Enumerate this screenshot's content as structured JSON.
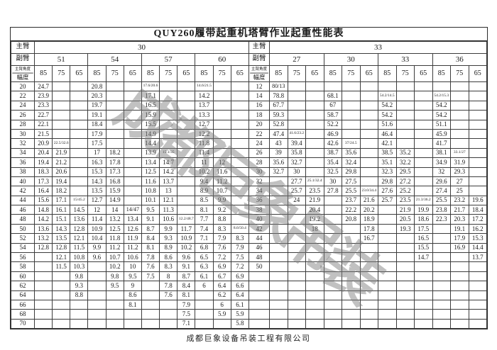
{
  "title": "QUY260履带起重机塔臂作业起重性能表",
  "footer": "成都巨象设备吊装工程有限公司",
  "watermark": "成都巨象吊装",
  "labels": {
    "main_boom": "主臂",
    "jib": "副臂",
    "boom_angle": "主臂角度",
    "radius": "幅度"
  },
  "left_table": {
    "main_boom_value": "30",
    "jibs": [
      "51",
      "54",
      "57",
      "60"
    ],
    "angles": [
      "85",
      "75",
      "65"
    ],
    "rows": [
      {
        "r": "20",
        "v": [
          "24.7",
          "",
          "",
          "20.8",
          "",
          "",
          "17.6/20.6",
          "",
          "",
          "14.6/21.5",
          "",
          ""
        ]
      },
      {
        "r": "22",
        "v": [
          "23.9",
          "",
          "",
          "20.3",
          "",
          "",
          "17.1",
          "",
          "",
          "14.2",
          "",
          ""
        ]
      },
      {
        "r": "24",
        "v": [
          "23.3",
          "",
          "",
          "19.7",
          "",
          "",
          "16.5",
          "",
          "",
          "13.7",
          "",
          ""
        ]
      },
      {
        "r": "26",
        "v": [
          "22.7",
          "",
          "",
          "19.1",
          "",
          "",
          "15.9",
          "",
          "",
          "13.3",
          "",
          ""
        ]
      },
      {
        "r": "28",
        "v": [
          "22.1",
          "",
          "",
          "18.4",
          "",
          "",
          "15.5",
          "",
          "",
          "12.7",
          "",
          ""
        ]
      },
      {
        "r": "30",
        "v": [
          "21.5",
          "",
          "",
          "17.9",
          "",
          "",
          "14.9",
          "",
          "",
          "12.2",
          "",
          ""
        ]
      },
      {
        "r": "32",
        "v": [
          "20.9",
          "22.5/32.6",
          "",
          "17.5",
          "",
          "",
          "14.4",
          "",
          "",
          "11.8",
          "",
          ""
        ]
      },
      {
        "r": "34",
        "v": [
          "20.4",
          "21.9",
          "",
          "17",
          "18.2",
          "",
          "13.9",
          "15.1/35",
          "",
          "11.4",
          "",
          ""
        ]
      },
      {
        "r": "36",
        "v": [
          "19.4",
          "21.2",
          "",
          "16.3",
          "17.8",
          "",
          "13.4",
          "14.7",
          "",
          "11",
          "12",
          ""
        ]
      },
      {
        "r": "38",
        "v": [
          "18.3",
          "20.6",
          "",
          "15.3",
          "17.3",
          "",
          "12.5",
          "14.2",
          "",
          "10.2",
          "11.6",
          ""
        ]
      },
      {
        "r": "40",
        "v": [
          "17.3",
          "19.4",
          "",
          "14.3",
          "16.8",
          "",
          "11.6",
          "13.7",
          "",
          "9.4",
          "11.2",
          ""
        ]
      },
      {
        "r": "42",
        "v": [
          "16.4",
          "18.2",
          "",
          "13.5",
          "15.9",
          "",
          "10.8",
          "13",
          "",
          "8.9",
          "10.7",
          ""
        ]
      },
      {
        "r": "44",
        "v": [
          "15.6",
          "17.1",
          "15/45.2",
          "12.7",
          "14.9",
          "",
          "10.1",
          "12.1",
          "",
          "8.5",
          "9.9",
          ""
        ]
      },
      {
        "r": "46",
        "v": [
          "14.8",
          "16.1",
          "14.5",
          "12",
          "14",
          "14/47",
          "9.5",
          "11.3",
          "",
          "8.1",
          "9.2",
          ""
        ]
      },
      {
        "r": "48",
        "v": [
          "14.2",
          "15.1",
          "13.6",
          "11.4",
          "13.2",
          "13.4",
          "9.1",
          "10.6",
          "12.2/48.7",
          "7.7",
          "8.8",
          ""
        ]
      },
      {
        "r": "50",
        "v": [
          "13.6",
          "14.3",
          "12.8",
          "10.9",
          "12.5",
          "12.6",
          "8.7",
          "9.9",
          "11.7",
          "7.4",
          "8.3",
          "8.6/50.4"
        ]
      },
      {
        "r": "52",
        "v": [
          "13.2",
          "13.5",
          "12.1",
          "10.4",
          "11.8",
          "11.9",
          "8.4",
          "9.3",
          "10.9",
          "7.1",
          "7.9",
          "8.3"
        ]
      },
      {
        "r": "54",
        "v": [
          "12.8",
          "12.8",
          "11.5",
          "9.9",
          "11.2",
          "11.2",
          "8.1",
          "8.9",
          "10.2",
          "6.8",
          "7.6",
          "7.9"
        ]
      },
      {
        "r": "56",
        "v": [
          "",
          "12.1",
          "10.8",
          "9.6",
          "10.7",
          "10.6",
          "7.8",
          "8.6",
          "9.6",
          "6.5",
          "7.2",
          "7.5"
        ]
      },
      {
        "r": "58",
        "v": [
          "",
          "11.5",
          "10.3",
          "",
          "10.2",
          "10",
          "7.6",
          "8.3",
          "9.1",
          "6.3",
          "6.9",
          "7.2"
        ]
      },
      {
        "r": "60",
        "v": [
          "",
          "",
          "9.8",
          "",
          "9.8",
          "9.5",
          "7.5",
          "8",
          "8.7",
          "6.1",
          "6.7",
          "6.9"
        ]
      },
      {
        "r": "62",
        "v": [
          "",
          "",
          "9.3",
          "",
          "9.5",
          "9",
          "",
          "7.8",
          "8.4",
          "6",
          "6.4",
          "6.6"
        ]
      },
      {
        "r": "64",
        "v": [
          "",
          "",
          "8.8",
          "",
          "",
          "8.6",
          "",
          "7.6",
          "8.1",
          "",
          "6.2",
          "6.4"
        ]
      },
      {
        "r": "66",
        "v": [
          "",
          "",
          "",
          "",
          "",
          "8.1",
          "",
          "",
          "7.9",
          "",
          "6",
          "6.1"
        ]
      },
      {
        "r": "68",
        "v": [
          "",
          "",
          "",
          "",
          "",
          "",
          "",
          "",
          "7.5",
          "",
          "5.9",
          "5.9"
        ]
      },
      {
        "r": "70",
        "v": [
          "",
          "",
          "",
          "",
          "",
          "",
          "",
          "",
          "7.1",
          "",
          "",
          "5.8"
        ]
      }
    ]
  },
  "right_table": {
    "main_boom_value": "33",
    "jibs": [
      "27",
      "30",
      "33",
      "36"
    ],
    "angles": [
      "85",
      "75",
      "65"
    ],
    "rows": [
      {
        "r": "12",
        "v": [
          "80/13",
          "",
          "",
          "",
          "",
          "",
          "",
          "",
          "",
          "",
          "",
          ""
        ]
      },
      {
        "r": "14",
        "v": [
          "78.8",
          "",
          "",
          "68.1",
          "",
          "",
          "54.2/14.5",
          "",
          "",
          "54.2/15.3",
          "",
          ""
        ]
      },
      {
        "r": "16",
        "v": [
          "67.7",
          "",
          "",
          "67",
          "",
          "",
          "54.2",
          "",
          "",
          "54.2",
          "",
          ""
        ]
      },
      {
        "r": "18",
        "v": [
          "59.3",
          "",
          "",
          "58.7",
          "",
          "",
          "54.2",
          "",
          "",
          "54.2",
          "",
          ""
        ]
      },
      {
        "r": "20",
        "v": [
          "52.8",
          "",
          "",
          "52.2",
          "",
          "",
          "51.6",
          "",
          "",
          "51.1",
          "",
          ""
        ]
      },
      {
        "r": "22",
        "v": [
          "47.4",
          "41.6/23.2",
          "",
          "46.9",
          "",
          "",
          "46.4",
          "",
          "",
          "45.9",
          "",
          ""
        ]
      },
      {
        "r": "24",
        "v": [
          "43",
          "39.4",
          "",
          "42.6",
          "37/24.5",
          "",
          "42.1",
          "",
          "",
          "41.7",
          "",
          ""
        ]
      },
      {
        "r": "26",
        "v": [
          "39",
          "35.8",
          "",
          "38.7",
          "35.6",
          "",
          "38.5",
          "35.2",
          "",
          "38.1",
          "33.1/27",
          ""
        ]
      },
      {
        "r": "28",
        "v": [
          "35.6",
          "32.7",
          "",
          "35.4",
          "32.4",
          "",
          "35.1",
          "32.2",
          "",
          "34.9",
          "31.9",
          ""
        ]
      },
      {
        "r": "30",
        "v": [
          "32.7",
          "30",
          "",
          "32.5",
          "29.8",
          "",
          "32.3",
          "29.5",
          "",
          "32",
          "29.3",
          ""
        ]
      },
      {
        "r": "32",
        "v": [
          "",
          "27.7",
          "25.1/32.4",
          "30",
          "27.5",
          "",
          "29.8",
          "27.2",
          "",
          "29.6",
          "27",
          ""
        ]
      },
      {
        "r": "34",
        "v": [
          "",
          "25.7",
          "23.5",
          "27.8",
          "25.5",
          "23.0/34.4",
          "27.6",
          "25.2",
          "",
          "27.4",
          "25",
          ""
        ]
      },
      {
        "r": "36",
        "v": [
          "",
          "24",
          "21.9",
          "",
          "23.7",
          "21.6",
          "25.7",
          "23.5",
          "21.3/36.2",
          "25.5",
          "23.2",
          "19.6"
        ]
      },
      {
        "r": "38",
        "v": [
          "",
          "",
          "20.4",
          "",
          "22.2",
          "20.2",
          "",
          "21.9",
          "19.9",
          "23.8",
          "21.7",
          "18.4"
        ]
      },
      {
        "r": "40",
        "v": [
          "",
          "",
          "19.2",
          "",
          "20.8",
          "18.9",
          "",
          "20.5",
          "18.6",
          "22.3",
          "20.3",
          "17.2"
        ]
      },
      {
        "r": "42",
        "v": [
          "",
          "",
          "18",
          "",
          "",
          "17.8",
          "",
          "19.3",
          "17.5",
          "",
          "19.1",
          "16.2"
        ]
      },
      {
        "r": "44",
        "v": [
          "",
          "",
          "",
          "",
          "",
          "16.7",
          "",
          "",
          "16.5",
          "",
          "17.9",
          "15.3"
        ]
      },
      {
        "r": "46",
        "v": [
          "",
          "",
          "",
          "",
          "",
          "",
          "",
          "",
          "15.5",
          "",
          "16.9",
          "14.4"
        ]
      },
      {
        "r": "48",
        "v": [
          "",
          "",
          "",
          "",
          "",
          "",
          "",
          "",
          "14.7",
          "",
          "",
          "13.7"
        ]
      },
      {
        "r": "50",
        "v": [
          "",
          "",
          "",
          "",
          "",
          "",
          "",
          "",
          "",
          "",
          "",
          ""
        ]
      },
      {
        "r": "",
        "v": [
          "",
          "",
          "",
          "",
          "",
          "",
          "",
          "",
          "",
          "",
          "",
          ""
        ]
      },
      {
        "r": "",
        "v": [
          "",
          "",
          "",
          "",
          "",
          "",
          "",
          "",
          "",
          "",
          "",
          ""
        ]
      },
      {
        "r": "",
        "v": [
          "",
          "",
          "",
          "",
          "",
          "",
          "",
          "",
          "",
          "",
          "",
          ""
        ]
      },
      {
        "r": "",
        "v": [
          "",
          "",
          "",
          "",
          "",
          "",
          "",
          "",
          "",
          "",
          "",
          ""
        ]
      },
      {
        "r": "",
        "v": [
          "",
          "",
          "",
          "",
          "",
          "",
          "",
          "",
          "",
          "",
          "",
          ""
        ]
      },
      {
        "r": "",
        "v": [
          "",
          "",
          "",
          "",
          "",
          "",
          "",
          "",
          "",
          "",
          "",
          ""
        ]
      }
    ]
  }
}
